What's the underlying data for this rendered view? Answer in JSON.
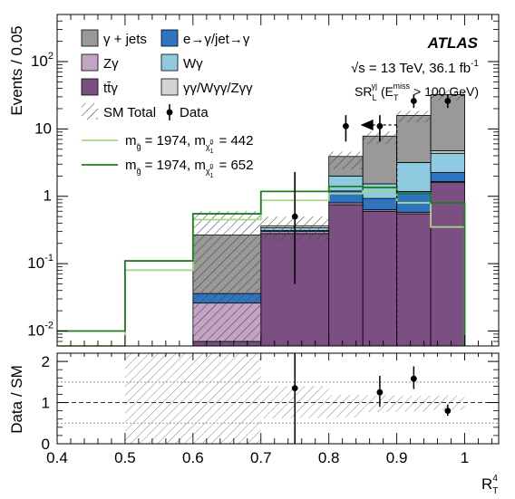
{
  "chart_data": [
    {
      "type": "histogram-stack",
      "ylabel": "Events / 0.05",
      "yscale": "log",
      "ylim": [
        0.006,
        500
      ],
      "xlim": [
        0.4,
        1.05
      ],
      "bin_edges": [
        0.6,
        0.7,
        0.8,
        0.85,
        0.9,
        0.95,
        1.0
      ],
      "yticks": [
        {
          "v": 0.01,
          "label": "10",
          "sup": "-2"
        },
        {
          "v": 0.1,
          "label": "10",
          "sup": "-1"
        },
        {
          "v": 1,
          "label": "1",
          "sup": ""
        },
        {
          "v": 10,
          "label": "10",
          "sup": ""
        },
        {
          "v": 100,
          "label": "10",
          "sup": "2"
        },
        {
          "v": 1000,
          "label": "10",
          "sup": "3"
        }
      ],
      "experiment_label": "ATLAS",
      "energy_label": "√s = 13 TeV, 36.1 fb",
      "energy_label_sup": "-1",
      "region_label": "SR",
      "region_sub": "L",
      "region_sup": "γj",
      "region_cut": "(E",
      "region_cut_sub": "T",
      "region_cut_sup": "miss",
      "region_cut_tail": "> 100 GeV)",
      "cut_value": 0.9,
      "cut_arrow": "left",
      "stack_order": [
        "ttgamma",
        "zgamma",
        "ewfake",
        "wgamma",
        "diboson",
        "gammajets"
      ],
      "series": [
        {
          "key": "ttgamma",
          "name": "tt̄γ",
          "color": "#7b4f82",
          "values": [
            0.007,
            0.28,
            0.75,
            0.6,
            0.55,
            1.6
          ]
        },
        {
          "key": "zgamma",
          "name": "Zγ",
          "color": "#c4a4c4",
          "values": [
            0.019,
            0.02,
            0.05,
            0.03,
            0.03,
            0.05
          ]
        },
        {
          "key": "ewfake",
          "name": "e→γ/jet→γ",
          "color": "#2e74c0",
          "values": [
            0.01,
            0.01,
            0.4,
            0.3,
            0.6,
            0.6
          ]
        },
        {
          "key": "wgamma",
          "name": "Wγ",
          "color": "#8fcbe0",
          "values": [
            0.0,
            0.03,
            0.8,
            0.6,
            2.0,
            2.1
          ]
        },
        {
          "key": "diboson",
          "name": "γγ/Wγγ/Zγγ",
          "color": "#d4d4d4",
          "values": [
            0.0,
            0.025,
            0.0,
            0.0,
            0.0,
            0.4
          ]
        },
        {
          "key": "gammajets",
          "name": "γ + jets",
          "color": "#999999",
          "values": [
            0.23,
            0.0,
            1.9,
            6.3,
            12.7,
            27.6
          ]
        }
      ],
      "sm_total": {
        "name": "SM Total",
        "values": [
          0.3,
          0.36,
          3.9,
          7.8,
          15.9,
          32.4
        ],
        "unc_up": [
          0.6,
          0.5,
          4.6,
          9.2,
          18.6,
          38.0
        ],
        "unc_down": [
          0.0,
          0.22,
          2.5,
          6.0,
          12.5,
          26.5
        ]
      },
      "data": {
        "name": "Data",
        "x": [
          0.75,
          0.825,
          0.875,
          0.925,
          0.975
        ],
        "y": [
          0.5,
          11,
          11,
          26,
          26
        ],
        "err_up": [
          1.8,
          5,
          5,
          6.5,
          6.5
        ],
        "err_down": [
          0.45,
          4.5,
          4.5,
          5.5,
          5.5
        ]
      },
      "signals": [
        {
          "name_prefix": "m",
          "name_sub1": "g̃",
          "name_mid": " = 1974, m",
          "name_sub2": "χ̃",
          "name_sub2_sup": "0",
          "name_sub2_sub": "1",
          "name_tail": " =  442",
          "color": "#a6d785",
          "edges": [
            0.4,
            0.5,
            0.6,
            0.7,
            0.8,
            0.85,
            0.9,
            0.95,
            1.0
          ],
          "values": [
            0.0,
            0.08,
            0.45,
            0.87,
            1.1,
            1.2,
            0.8,
            0.35
          ]
        },
        {
          "name_prefix": "m",
          "name_sub1": "g̃",
          "name_mid": " = 1974, m",
          "name_sub2": "χ̃",
          "name_sub2_sup": "0",
          "name_sub2_sub": "1",
          "name_tail": " =  652",
          "color": "#1e7f1e",
          "edges": [
            0.4,
            0.5,
            0.6,
            0.7,
            0.8,
            0.85,
            0.9,
            0.95,
            1.0
          ],
          "values": [
            0.01,
            0.11,
            0.55,
            1.18,
            1.4,
            1.35,
            1.1,
            0.8
          ]
        }
      ]
    },
    {
      "type": "ratio",
      "ylabel": "Data / SM",
      "ylim": [
        0,
        2.2
      ],
      "yticks": [
        "0",
        "1",
        "2"
      ],
      "xlabel": "R",
      "xlabel_sub": "T",
      "xlabel_sup": "4",
      "xticks": [
        "0.4",
        "0.5",
        "0.6",
        "0.7",
        "0.8",
        "0.9",
        "1"
      ],
      "xtick_values": [
        0.4,
        0.5,
        0.6,
        0.7,
        0.8,
        0.9,
        1.0
      ],
      "unc_band": [
        {
          "x0": 0.5,
          "x1": 0.7,
          "lo": 0.0,
          "hi": 2.2
        },
        {
          "x0": 0.7,
          "x1": 0.8,
          "lo": 0.62,
          "hi": 1.4
        },
        {
          "x0": 0.8,
          "x1": 0.85,
          "lo": 0.64,
          "hi": 1.18
        },
        {
          "x0": 0.85,
          "x1": 0.9,
          "lo": 0.77,
          "hi": 1.18
        },
        {
          "x0": 0.9,
          "x1": 0.95,
          "lo": 0.78,
          "hi": 1.17
        },
        {
          "x0": 0.95,
          "x1": 1.0,
          "lo": 0.82,
          "hi": 1.17
        }
      ],
      "points": {
        "x": [
          0.75,
          0.875,
          0.925,
          0.975
        ],
        "y": [
          1.35,
          1.25,
          1.58,
          0.8
        ],
        "err_up": [
          0.85,
          0.4,
          0.3,
          0.15
        ],
        "err_down": [
          1.35,
          0.35,
          0.25,
          0.12
        ]
      },
      "reference_lines": [
        0.5,
        1.0,
        1.5
      ]
    }
  ],
  "legend_columns": [
    [
      "gammajets",
      "zgamma",
      "ttgamma"
    ],
    [
      "ewfake",
      "wgamma",
      "diboson"
    ]
  ]
}
